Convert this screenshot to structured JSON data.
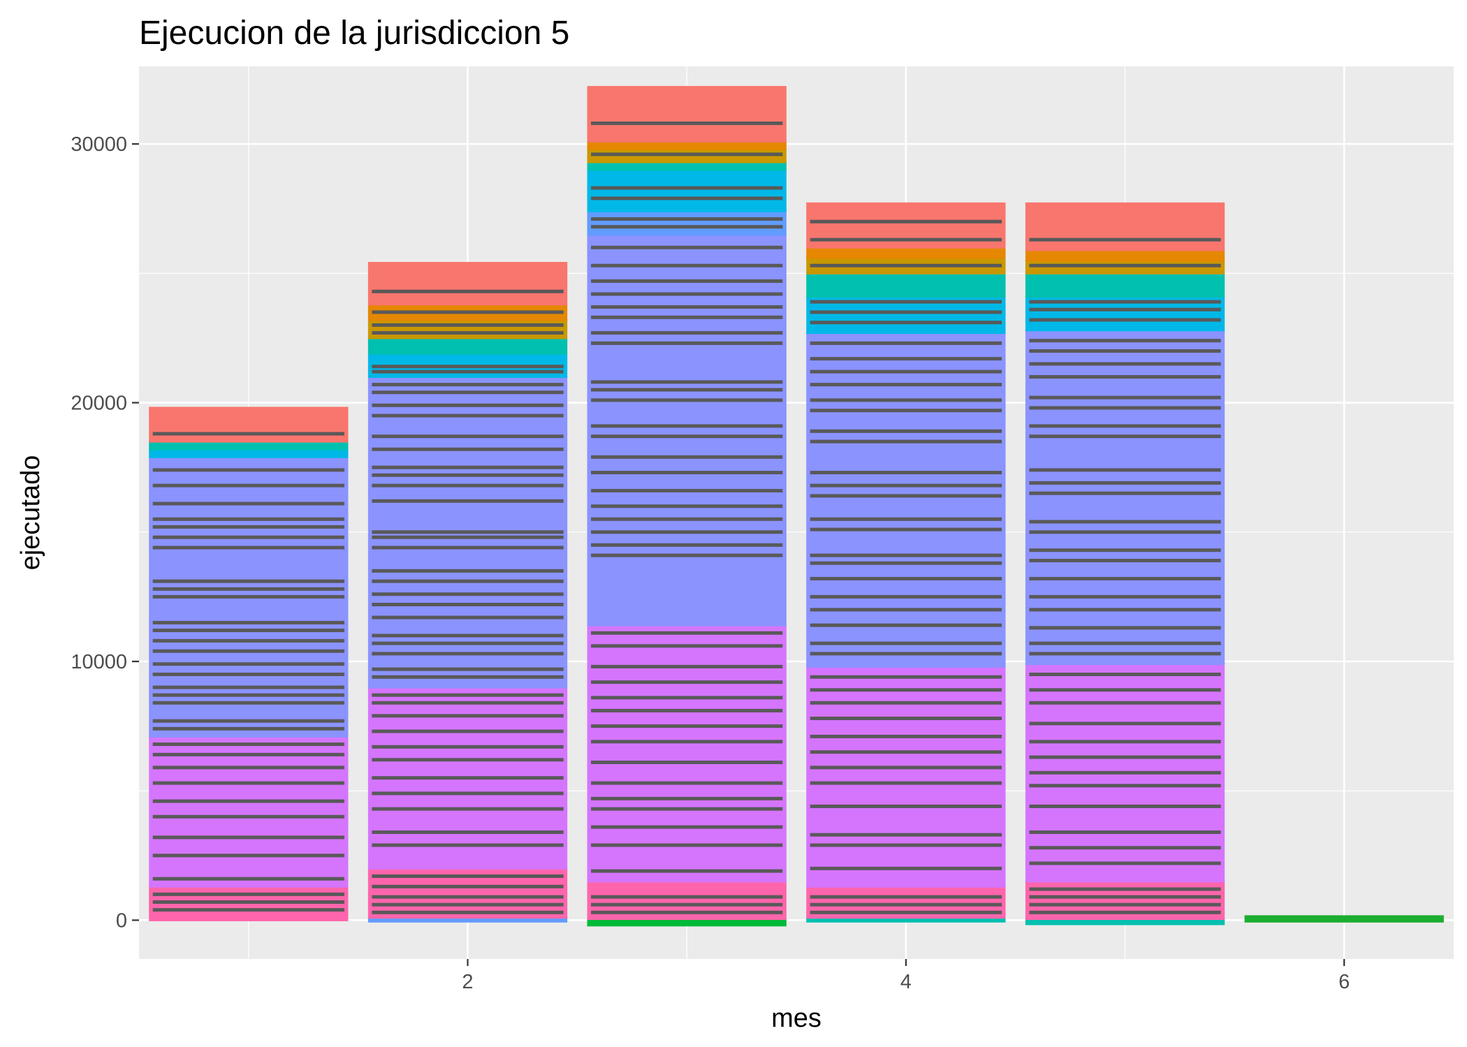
{
  "chart_data": {
    "type": "bar",
    "stacked": true,
    "title": "Ejecucion de la jurisdiccion 5",
    "xlabel": "mes",
    "ylabel": "ejecutado",
    "xlim": [
      0.5,
      6.5
    ],
    "ylim": [
      -1500,
      33000
    ],
    "x_ticks": [
      2,
      4,
      6
    ],
    "y_ticks": [
      0,
      10000,
      20000,
      30000
    ],
    "x_tick_labels": [
      "2",
      "4",
      "6"
    ],
    "y_tick_labels": [
      "0",
      "10000",
      "20000",
      "30000"
    ],
    "grid": true,
    "legend": "none",
    "outline_color": "#595959",
    "colors": {
      "red": "#F8766D",
      "orange": "#E58700",
      "olive": "#C99800",
      "green": "#00BA38",
      "teal": "#00C0AF",
      "cyan": "#00B8E7",
      "blue": "#619CFF",
      "lavender": "#8B93FF",
      "violet": "#D575FE",
      "magenta": "#F962DD",
      "pink": "#FF65AC",
      "dark_green": "#1BAE2F"
    },
    "bars": [
      {
        "x": 1,
        "total": 19800,
        "bands": [
          {
            "color": "pink",
            "from": 0,
            "to": 1300,
            "lines": [
              400,
              700,
              1000
            ]
          },
          {
            "color": "violet",
            "from": 1300,
            "to": 7100,
            "lines": [
              1600,
              2500,
              3200,
              4000,
              4600,
              5300,
              5900,
              6400,
              6800
            ]
          },
          {
            "color": "lavender",
            "from": 7100,
            "to": 17900,
            "lines": [
              7400,
              7700,
              8400,
              8700,
              9000,
              9500,
              9900,
              10400,
              10800,
              11200,
              11500,
              12500,
              12800,
              13100,
              14400,
              14800,
              15200,
              15500,
              16100,
              16800,
              17400
            ]
          },
          {
            "color": "cyan",
            "from": 17900,
            "to": 18200,
            "lines": []
          },
          {
            "color": "teal",
            "from": 18200,
            "to": 18500,
            "lines": []
          },
          {
            "color": "red",
            "from": 18500,
            "to": 19800,
            "lines": [
              18800
            ]
          }
        ]
      },
      {
        "x": 2,
        "total": 25400,
        "bands": [
          {
            "color": "blue",
            "from": -50,
            "to": 100,
            "lines": []
          },
          {
            "color": "pink",
            "from": 100,
            "to": 2000,
            "lines": [
              300,
              600,
              900,
              1300,
              1700
            ]
          },
          {
            "color": "violet",
            "from": 2000,
            "to": 9000,
            "lines": [
              2900,
              3400,
              4300,
              4900,
              5500,
              6200,
              6700,
              7300,
              7900,
              8400,
              8700
            ]
          },
          {
            "color": "lavender",
            "from": 9000,
            "to": 21000,
            "lines": [
              9400,
              9700,
              10300,
              10700,
              11000,
              11700,
              12200,
              12600,
              13100,
              13500,
              14400,
              14800,
              15000,
              16200,
              16800,
              17200,
              17500,
              18200,
              18700,
              19500,
              19900,
              20400,
              20700
            ]
          },
          {
            "color": "cyan",
            "from": 21000,
            "to": 21900,
            "lines": [
              21200,
              21400
            ]
          },
          {
            "color": "teal",
            "from": 21900,
            "to": 22500,
            "lines": []
          },
          {
            "color": "olive",
            "from": 22500,
            "to": 23200,
            "lines": [
              22700,
              23000
            ]
          },
          {
            "color": "orange",
            "from": 23200,
            "to": 23800,
            "lines": [
              23500
            ]
          },
          {
            "color": "red",
            "from": 23800,
            "to": 25400,
            "lines": [
              24300
            ]
          }
        ]
      },
      {
        "x": 3,
        "total": 32200,
        "bands": [
          {
            "color": "green",
            "from": -200,
            "to": 50,
            "lines": []
          },
          {
            "color": "pink",
            "from": 50,
            "to": 1500,
            "lines": [
              300,
              600,
              900
            ]
          },
          {
            "color": "violet",
            "from": 1500,
            "to": 11400,
            "lines": [
              1900,
              2900,
              3600,
              4300,
              4700,
              5300,
              6100,
              6900,
              7500,
              8100,
              8600,
              9200,
              9800,
              10600,
              11100
            ]
          },
          {
            "color": "lavender",
            "from": 11400,
            "to": 26500,
            "lines": [
              14100,
              14500,
              15000,
              15500,
              16000,
              16600,
              17300,
              17900,
              18700,
              19100,
              20100,
              20500,
              20800,
              22300,
              22700,
              23300,
              23700,
              24200,
              24700,
              25300,
              26000
            ]
          },
          {
            "color": "blue",
            "from": 26500,
            "to": 27400,
            "lines": [
              26800,
              27100
            ]
          },
          {
            "color": "cyan",
            "from": 27400,
            "to": 29000,
            "lines": [
              27900,
              28300
            ]
          },
          {
            "color": "teal",
            "from": 29000,
            "to": 29300,
            "lines": []
          },
          {
            "color": "olive",
            "from": 29300,
            "to": 29800,
            "lines": [
              29600
            ]
          },
          {
            "color": "orange",
            "from": 29800,
            "to": 30100,
            "lines": []
          },
          {
            "color": "red",
            "from": 30100,
            "to": 32200,
            "lines": [
              30800
            ]
          }
        ]
      },
      {
        "x": 4,
        "total": 27700,
        "bands": [
          {
            "color": "teal",
            "from": -50,
            "to": 100,
            "lines": []
          },
          {
            "color": "pink",
            "from": 100,
            "to": 1300,
            "lines": [
              300,
              600,
              900
            ]
          },
          {
            "color": "violet",
            "from": 1300,
            "to": 9800,
            "lines": [
              2000,
              2900,
              3300,
              4400,
              5300,
              5900,
              6500,
              7100,
              7800,
              8400,
              8900,
              9400
            ]
          },
          {
            "color": "lavender",
            "from": 9800,
            "to": 22700,
            "lines": [
              10300,
              10700,
              11400,
              12000,
              12500,
              13200,
              13800,
              14100,
              15100,
              15500,
              16400,
              16800,
              17300,
              18500,
              18900,
              19700,
              20100,
              20700,
              21200,
              21700,
              22300
            ]
          },
          {
            "color": "cyan",
            "from": 22700,
            "to": 24100,
            "lines": [
              23100,
              23500,
              23900
            ]
          },
          {
            "color": "teal",
            "from": 24100,
            "to": 25000,
            "lines": []
          },
          {
            "color": "olive",
            "from": 25000,
            "to": 25600,
            "lines": [
              25300
            ]
          },
          {
            "color": "orange",
            "from": 25600,
            "to": 26000,
            "lines": []
          },
          {
            "color": "red",
            "from": 26000,
            "to": 27700,
            "lines": [
              26300,
              27000
            ]
          }
        ]
      },
      {
        "x": 5,
        "total": 27700,
        "bands": [
          {
            "color": "teal",
            "from": -150,
            "to": 50,
            "lines": []
          },
          {
            "color": "pink",
            "from": 50,
            "to": 1500,
            "lines": [
              300,
              600,
              900,
              1200
            ]
          },
          {
            "color": "violet",
            "from": 1500,
            "to": 9900,
            "lines": [
              2200,
              2800,
              3400,
              4400,
              5200,
              5700,
              6300,
              6900,
              7600,
              8400,
              8900,
              9500
            ]
          },
          {
            "color": "lavender",
            "from": 9900,
            "to": 22800,
            "lines": [
              10300,
              10700,
              11300,
              12000,
              12500,
              13200,
              13900,
              14300,
              15000,
              15400,
              16500,
              16900,
              17400,
              18700,
              19100,
              19800,
              20200,
              21000,
              21500,
              22000,
              22400
            ]
          },
          {
            "color": "cyan",
            "from": 22800,
            "to": 24100,
            "lines": [
              23200,
              23600,
              23900
            ]
          },
          {
            "color": "teal",
            "from": 24100,
            "to": 25000,
            "lines": []
          },
          {
            "color": "olive",
            "from": 25000,
            "to": 25500,
            "lines": [
              25300
            ]
          },
          {
            "color": "orange",
            "from": 25500,
            "to": 25900,
            "lines": []
          },
          {
            "color": "red",
            "from": 25900,
            "to": 27700,
            "lines": [
              26300
            ]
          }
        ]
      },
      {
        "x": 6,
        "total": 150,
        "bands": [
          {
            "color": "dark_green",
            "from": -50,
            "to": 150,
            "lines": []
          }
        ]
      }
    ]
  }
}
